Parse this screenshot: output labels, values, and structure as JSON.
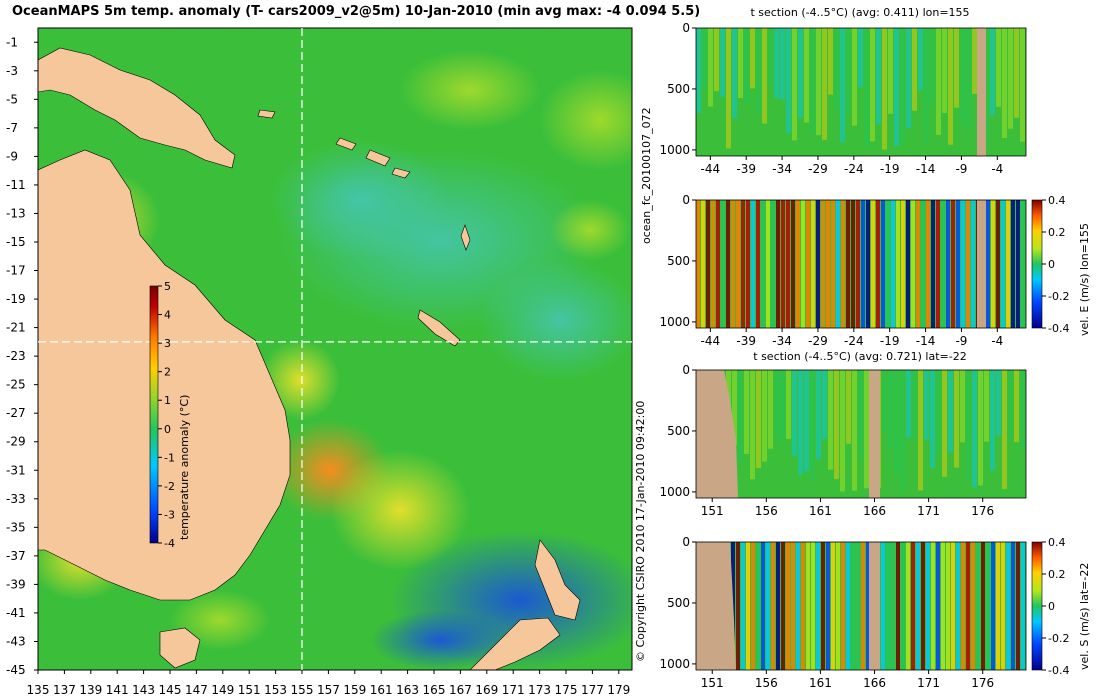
{
  "main_title": "OceanMAPS 5m temp. anomaly (T- cars2009_v2@5m) 10-Jan-2010 (min avg max: -4 0.094 5.5)",
  "side_credit": "© Copyright CSIRO 2010   17-Jan-2010 09:42:00",
  "side_run": "ocean_fc_20100107_072",
  "colors": {
    "land": "#f7c79c",
    "ocean_base": "#3bbf3a",
    "section_land": "#c9a786",
    "grid_line": "#ffffff"
  },
  "colormap": [
    "#00008b",
    "#0044ff",
    "#00c8ff",
    "#22c55e",
    "#b5e61d",
    "#ffd000",
    "#ff7a00",
    "#c00000",
    "#7a0000"
  ],
  "chart_data": [
    {
      "type": "heatmap",
      "title": "OceanMAPS 5m temp. anomaly (T- cars2009_v2@5m) 10-Jan-2010 (min avg max: -4 0.094 5.5)",
      "x_ticks": [
        "135",
        "137",
        "139",
        "141",
        "143",
        "145",
        "147",
        "149",
        "151",
        "153",
        "155",
        "157",
        "159",
        "161",
        "163",
        "165",
        "167",
        "169",
        "171",
        "173",
        "175",
        "177",
        "179"
      ],
      "y_ticks": [
        "-1",
        "-3",
        "-5",
        "-7",
        "-9",
        "-11",
        "-13",
        "-15",
        "-17",
        "-19",
        "-21",
        "-23",
        "-25",
        "-27",
        "-29",
        "-31",
        "-33",
        "-35",
        "-37",
        "-39",
        "-41",
        "-43",
        "-45"
      ],
      "xlim": [
        135,
        180
      ],
      "ylim": [
        -45,
        0
      ],
      "crosshair": {
        "lon": 155,
        "lat": -22
      },
      "colorbar": {
        "label": "temperature anomaly (°C)",
        "ticks": [
          "5",
          "4",
          "3",
          "2",
          "1",
          "0",
          "-1",
          "-2",
          "-3",
          "-4"
        ],
        "range": [
          -4,
          5
        ]
      },
      "stats": {
        "min": -4,
        "avg": 0.094,
        "max": 5.5
      }
    },
    {
      "type": "heatmap",
      "title": "t section (-4..5°C) (avg: 0.411) lon=155",
      "x_ticks": [
        "-44",
        "-39",
        "-34",
        "-29",
        "-24",
        "-19",
        "-14",
        "-9",
        "-4"
      ],
      "y_ticks": [
        "0",
        "500",
        "1000"
      ],
      "xlim": [
        -46,
        0
      ],
      "ylim": [
        1050,
        0
      ]
    },
    {
      "type": "heatmap",
      "title": "",
      "x_ticks": [
        "-44",
        "-39",
        "-34",
        "-29",
        "-24",
        "-19",
        "-14",
        "-9",
        "-4"
      ],
      "y_ticks": [
        "0",
        "500",
        "1000"
      ],
      "xlim": [
        -46,
        0
      ],
      "ylim": [
        1050,
        0
      ],
      "colorbar": {
        "label": "vel. E (m/s) lon=155",
        "ticks": [
          "0.4",
          "0.2",
          "0",
          "-0.2",
          "-0.4"
        ],
        "range": [
          -0.4,
          0.4
        ]
      }
    },
    {
      "type": "heatmap",
      "title": "t section (-4..5°C) (avg: 0.721) lat=-22",
      "x_ticks": [
        "151",
        "156",
        "161",
        "166",
        "171",
        "176"
      ],
      "y_ticks": [
        "0",
        "500",
        "1000"
      ],
      "xlim": [
        149.5,
        180
      ],
      "ylim": [
        1050,
        0
      ]
    },
    {
      "type": "heatmap",
      "title": "",
      "x_ticks": [
        "151",
        "156",
        "161",
        "166",
        "171",
        "176"
      ],
      "y_ticks": [
        "0",
        "500",
        "1000"
      ],
      "xlim": [
        149.5,
        180
      ],
      "ylim": [
        1050,
        0
      ],
      "colorbar": {
        "label": "vel. S (m/s) lat=-22",
        "ticks": [
          "0.4",
          "0.2",
          "0",
          "-0.2",
          "-0.4"
        ],
        "range": [
          -0.4,
          0.4
        ]
      }
    }
  ]
}
